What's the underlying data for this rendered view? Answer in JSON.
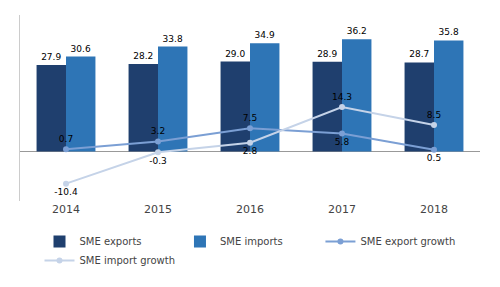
{
  "chart_data": {
    "type": "bar",
    "categories": [
      "2014",
      "2015",
      "2016",
      "2017",
      "2018"
    ],
    "series": [
      {
        "name": "SME exports",
        "type": "bar",
        "color": "#1F3F6E",
        "values": [
          27.9,
          28.2,
          29.0,
          28.9,
          28.7
        ],
        "value_labels": [
          "27.9",
          "28.2",
          "29.0",
          "28.9",
          "28.7"
        ]
      },
      {
        "name": "SME imports",
        "type": "bar",
        "color": "#2E75B6",
        "values": [
          30.6,
          33.8,
          34.9,
          36.2,
          35.8
        ]
      },
      {
        "name": "SME export growth",
        "type": "line",
        "color": "#7B9FD4",
        "marker": "circle",
        "values": [
          0.7,
          3.2,
          7.5,
          5.8,
          0.5
        ]
      },
      {
        "name": "SME import growth",
        "type": "line",
        "color": "#C5D3E8",
        "marker": "circle",
        "values": [
          -10.4,
          -0.3,
          2.8,
          14.3,
          8.5
        ]
      }
    ],
    "ylim": [
      -16,
      44
    ],
    "tick_labels": "x",
    "grid": false,
    "legend": "bottom",
    "data_labels": true
  }
}
